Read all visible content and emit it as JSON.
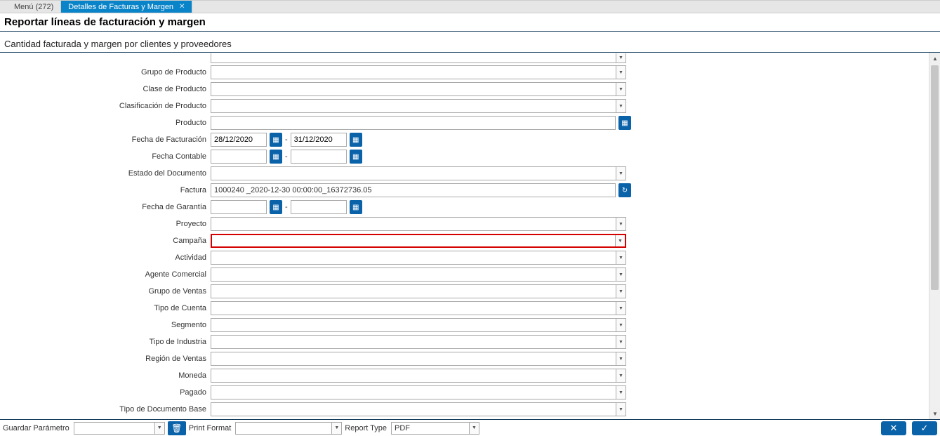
{
  "tabs": {
    "menu": "Menú (272)",
    "active": "Detalles de Facturas y Margen"
  },
  "header": {
    "title": "Reportar líneas de facturación y margen",
    "subtitle": "Cantidad facturada y margen por clientes y proveedores"
  },
  "labels": {
    "grupo_producto": "Grupo de Producto",
    "clase_producto": "Clase de Producto",
    "clasif_producto": "Clasificación de Producto",
    "producto": "Producto",
    "fecha_facturacion": "Fecha de Facturación",
    "fecha_contable": "Fecha Contable",
    "estado_documento": "Estado del Documento",
    "factura": "Factura",
    "fecha_garantia": "Fecha de Garantía",
    "proyecto": "Proyecto",
    "campana": "Campaña",
    "actividad": "Actividad",
    "agente_comercial": "Agente Comercial",
    "grupo_ventas": "Grupo de Ventas",
    "tipo_cuenta": "Tipo de Cuenta",
    "segmento": "Segmento",
    "tipo_industria": "Tipo de Industria",
    "region_ventas": "Región de Ventas",
    "moneda": "Moneda",
    "pagado": "Pagado",
    "tipo_doc_base": "Tipo de Documento Base"
  },
  "values": {
    "fecha_fact_from": "28/12/2020",
    "fecha_fact_to": "31/12/2020",
    "fecha_cont_from": "",
    "fecha_cont_to": "",
    "factura": "1000240 _2020-12-30 00:00:00_16372736.05",
    "fecha_gar_from": "",
    "fecha_gar_to": ""
  },
  "bottom": {
    "guardar_param": "Guardar Parámetro",
    "print_format": "Print Format",
    "report_type": "Report Type",
    "report_type_value": "PDF"
  }
}
